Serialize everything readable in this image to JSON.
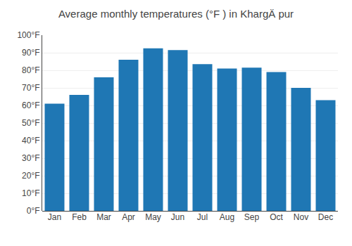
{
  "chart_data": {
    "type": "bar",
    "title": "Average monthly temperatures (°F ) in KhargÄ pur",
    "categories": [
      "Jan",
      "Feb",
      "Mar",
      "Apr",
      "May",
      "Jun",
      "Jul",
      "Aug",
      "Sep",
      "Oct",
      "Nov",
      "Dec"
    ],
    "values": [
      61,
      66,
      76,
      86,
      92.5,
      91.5,
      83.5,
      81,
      81.5,
      79,
      70,
      63
    ],
    "ylim": [
      0,
      100
    ],
    "yticks": [
      {
        "value": 0,
        "label": "0°F"
      },
      {
        "value": 10,
        "label": "10°F"
      },
      {
        "value": 20,
        "label": "20°F"
      },
      {
        "value": 30,
        "label": "30°F"
      },
      {
        "value": 40,
        "label": "40°F"
      },
      {
        "value": 50,
        "label": "50°F"
      },
      {
        "value": 60,
        "label": "60°F"
      },
      {
        "value": 70,
        "label": "70°F"
      },
      {
        "value": 80,
        "label": "80°F"
      },
      {
        "value": 90,
        "label": "90°F"
      },
      {
        "value": 100,
        "label": "100°F"
      }
    ],
    "grid": true
  }
}
